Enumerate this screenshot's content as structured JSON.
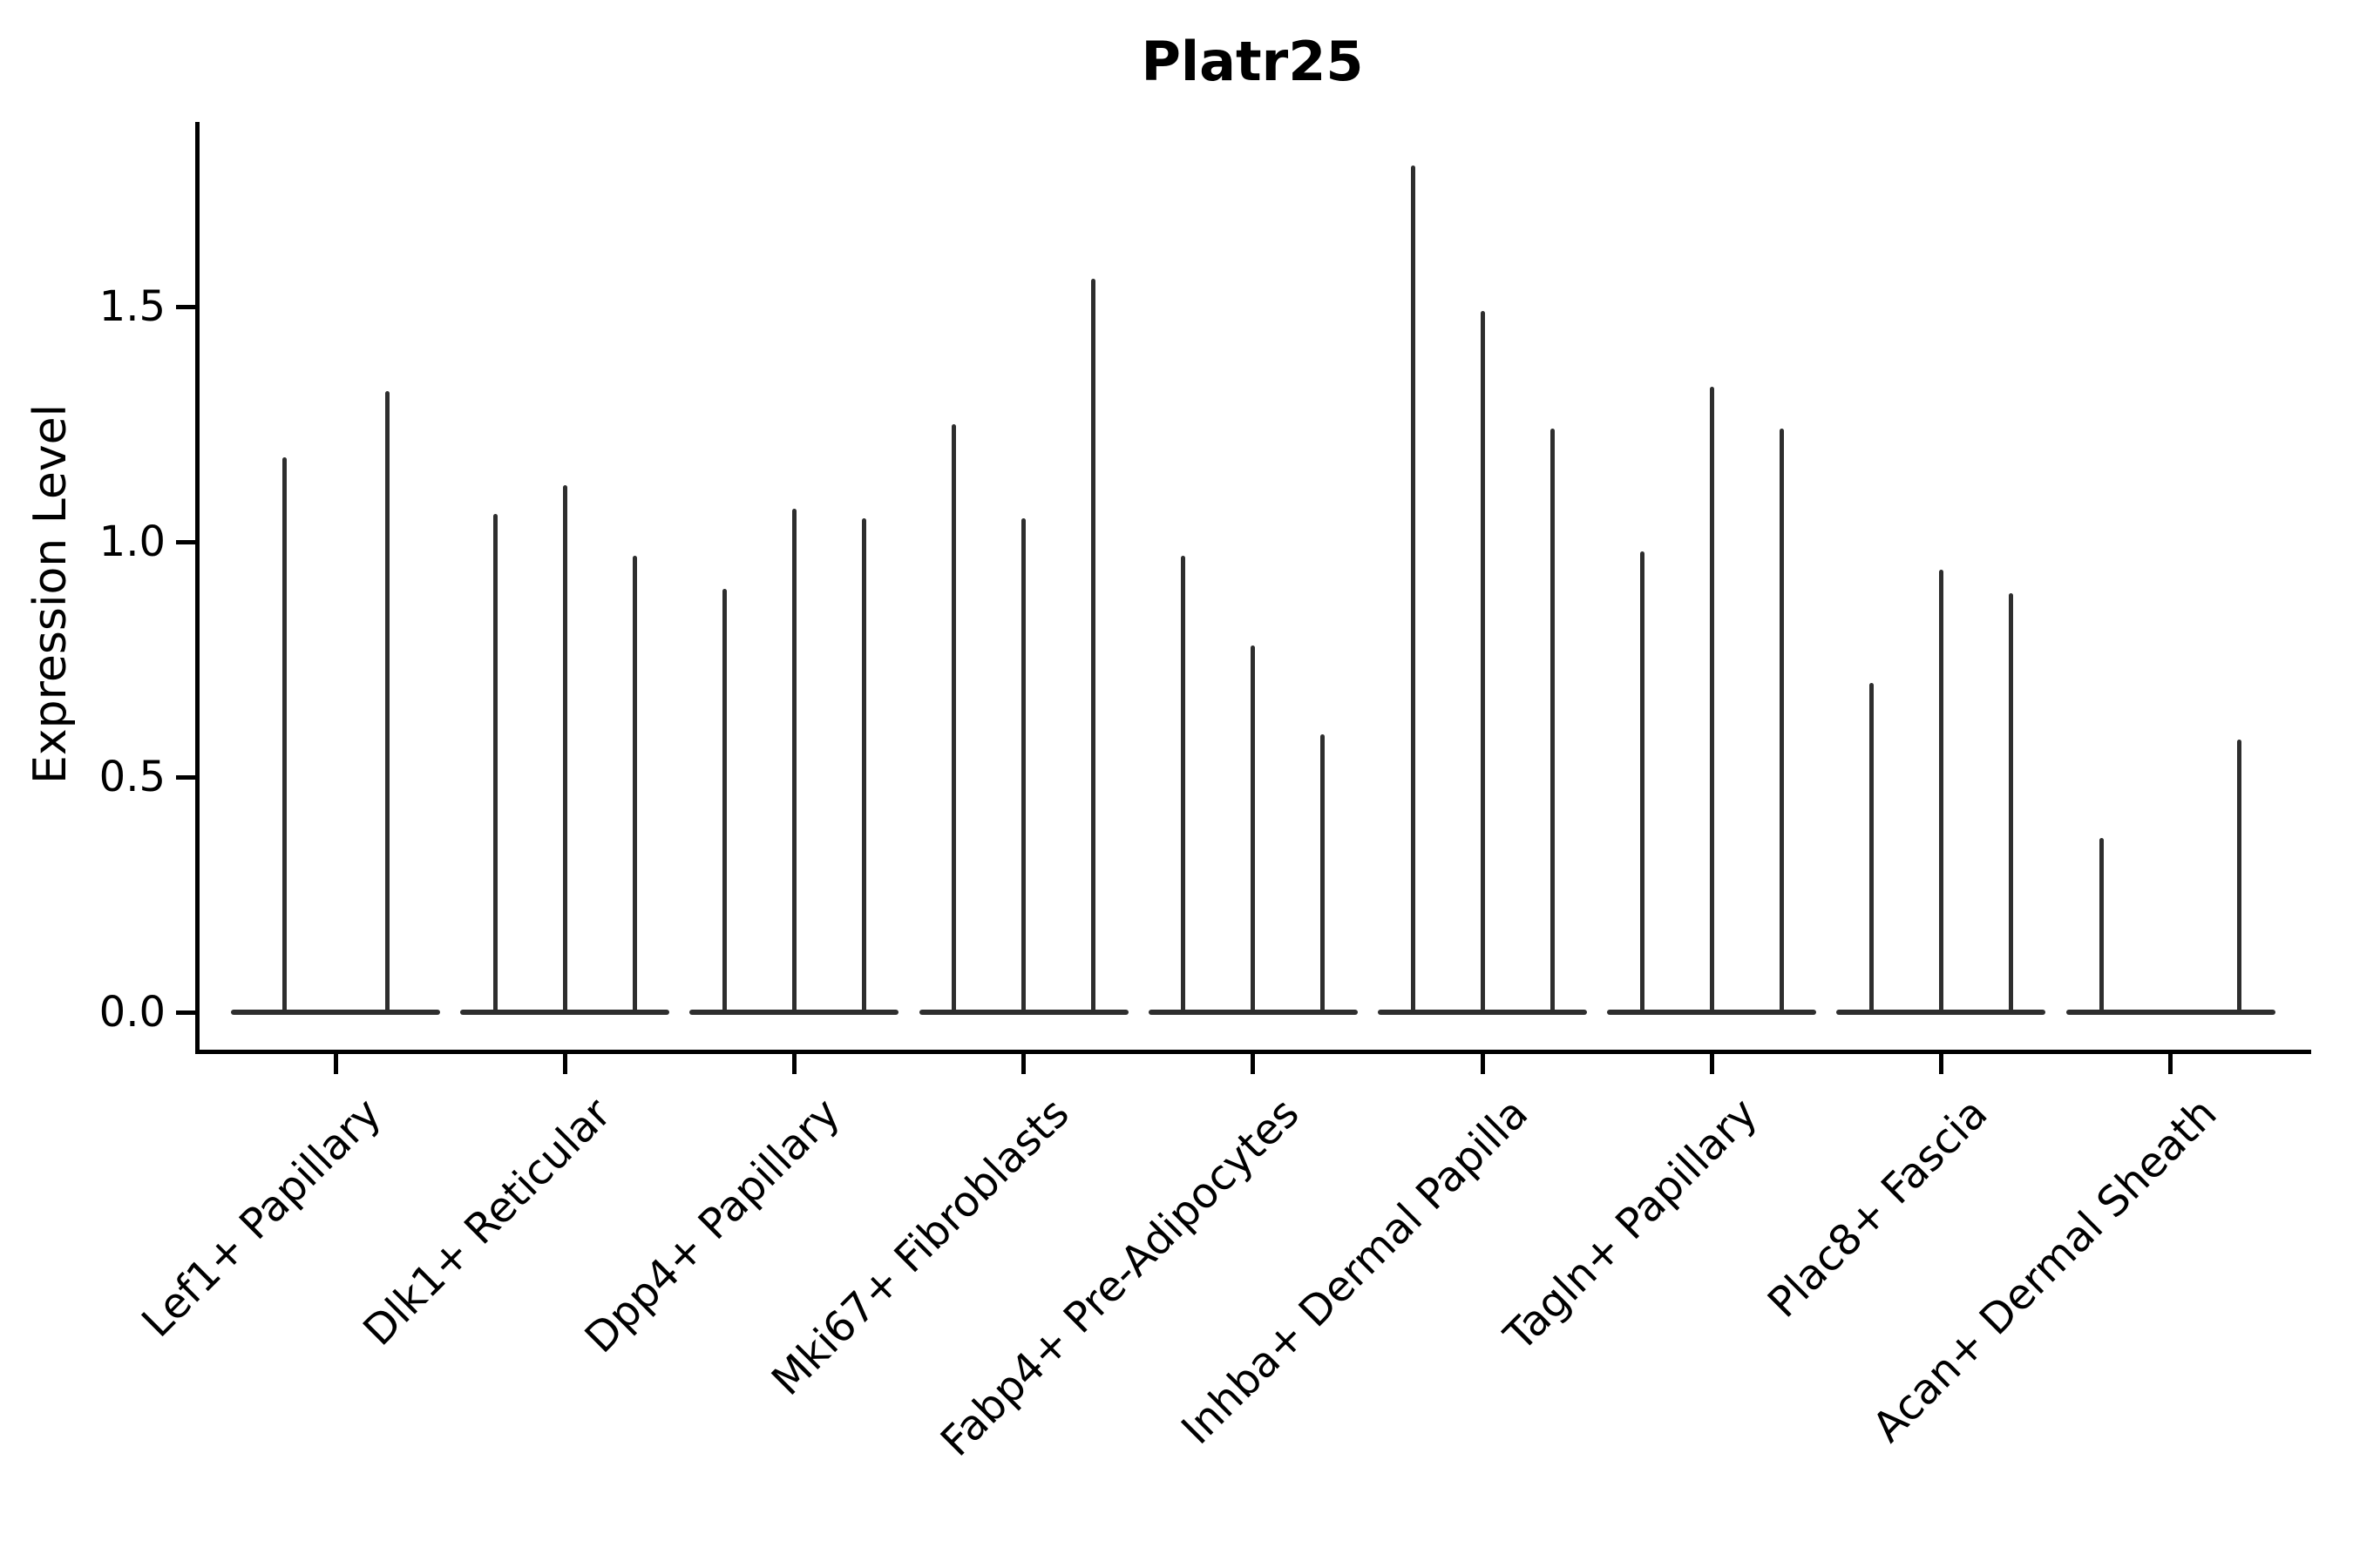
{
  "figure": {
    "background_color": "#ffffff",
    "ink_color": "#2e2e2e",
    "axis_color": "#000000"
  },
  "chart_data": {
    "type": "violin",
    "title": "Platr25",
    "xlabel": "",
    "ylabel": "Expression Level",
    "ylim": [
      -0.08,
      1.93
    ],
    "grid": false,
    "legend": "none",
    "y_ticks": [
      {
        "value": 0.0,
        "label": "0.0"
      },
      {
        "value": 0.5,
        "label": "0.5"
      },
      {
        "value": 1.0,
        "label": "1.0"
      },
      {
        "value": 1.5,
        "label": "1.5"
      }
    ],
    "categories": [
      "Lef1+ Papillary",
      "Dlk1+ Reticular",
      "Dpp4+ Papillary",
      "Mki67+ Fibroblasts",
      "Fabp4+ Pre-Adipocytes",
      "Inhba+ Dermal Papilla",
      "Tagln+ Papillary",
      "Plac8+ Fascia",
      "Acan+ Dermal Sheath"
    ],
    "groups": [
      {
        "label": "Lef1+ Papillary",
        "violins": [
          {
            "offset": -59,
            "peak": 1.18
          },
          {
            "offset": 59,
            "peak": 1.32
          }
        ]
      },
      {
        "label": "Dlk1+ Reticular",
        "violins": [
          {
            "offset": -80,
            "peak": 1.06
          },
          {
            "offset": 0,
            "peak": 1.12
          },
          {
            "offset": 80,
            "peak": 0.97
          }
        ]
      },
      {
        "label": "Dpp4+ Papillary",
        "violins": [
          {
            "offset": -80,
            "peak": 0.9
          },
          {
            "offset": 0,
            "peak": 1.07
          },
          {
            "offset": 80,
            "peak": 1.05
          }
        ]
      },
      {
        "label": "Mki67+ Fibroblasts",
        "violins": [
          {
            "offset": -80,
            "peak": 1.25
          },
          {
            "offset": 0,
            "peak": 1.05
          },
          {
            "offset": 80,
            "peak": 1.56
          }
        ]
      },
      {
        "label": "Fabp4+ Pre-Adipocytes",
        "violins": [
          {
            "offset": -80,
            "peak": 0.97
          },
          {
            "offset": 0,
            "peak": 0.78
          },
          {
            "offset": 80,
            "peak": 0.59
          }
        ]
      },
      {
        "label": "Inhba+ Dermal Papilla",
        "violins": [
          {
            "offset": -80,
            "peak": 1.8
          },
          {
            "offset": 0,
            "peak": 1.49
          },
          {
            "offset": 80,
            "peak": 1.24
          }
        ]
      },
      {
        "label": "Tagln+ Papillary",
        "violins": [
          {
            "offset": -80,
            "peak": 0.98
          },
          {
            "offset": 0,
            "peak": 1.33
          },
          {
            "offset": 80,
            "peak": 1.24
          }
        ]
      },
      {
        "label": "Plac8+ Fascia",
        "violins": [
          {
            "offset": -80,
            "peak": 0.7
          },
          {
            "offset": 0,
            "peak": 0.94
          },
          {
            "offset": 80,
            "peak": 0.89
          }
        ]
      },
      {
        "label": "Acan+ Dermal Sheath",
        "violins": [
          {
            "offset": -79,
            "peak": 0.37
          },
          {
            "offset": 79,
            "peak": 0.58
          }
        ]
      }
    ]
  }
}
